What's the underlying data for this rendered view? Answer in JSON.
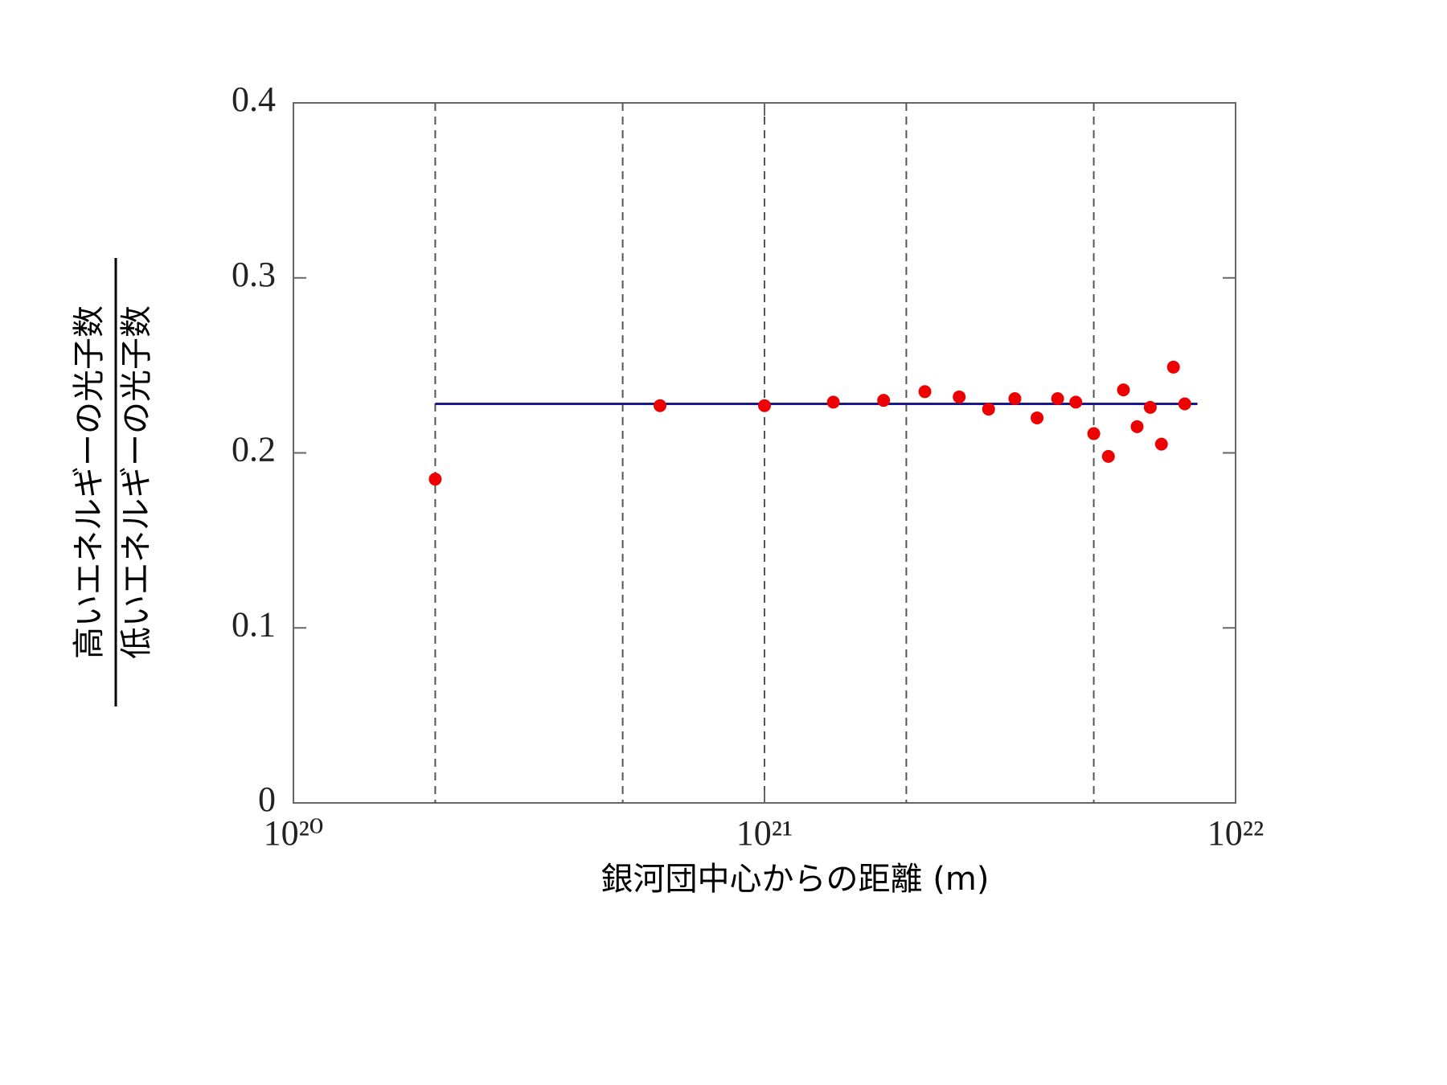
{
  "chart_data": {
    "type": "scatter",
    "xlabel": "銀河団中心からの距離 (m)",
    "ylabel": {
      "numerator": "高いエネルギーの光子数",
      "denominator": "低いエネルギーの光子数"
    },
    "xscale": "log",
    "xlim": [
      1e+20,
      1e+22
    ],
    "ylim": [
      0,
      0.4
    ],
    "xticks": [
      {
        "value": 1e+20,
        "label": "10²⁰"
      },
      {
        "value": 1e+21,
        "label": "10²¹"
      },
      {
        "value": 1e+22,
        "label": "10²²"
      }
    ],
    "yticks": [
      0,
      0.1,
      0.2,
      0.3,
      0.4
    ],
    "xgrid": [
      2e+20,
      5e+20,
      1e+21,
      2e+21,
      5e+21
    ],
    "color": "#ee0000",
    "x": [
      2e+20,
      6e+20,
      1e+21,
      1.4e+21,
      1.79e+21,
      2.19e+21,
      2.59e+21,
      2.99e+21,
      3.4e+21,
      3.79e+21,
      4.19e+21,
      4.58e+21,
      5e+21,
      5.37e+21,
      5.78e+21,
      6.18e+21,
      6.59e+21,
      6.96e+21,
      7.38e+21,
      7.8e+21
    ],
    "values": [
      0.185,
      0.227,
      0.227,
      0.229,
      0.23,
      0.235,
      0.232,
      0.225,
      0.231,
      0.22,
      0.231,
      0.229,
      0.211,
      0.198,
      0.236,
      0.215,
      0.226,
      0.205,
      0.249,
      0.228
    ],
    "fit_line": {
      "x": [
        2e+20,
        8.3e+21
      ],
      "values": [
        0.228,
        0.228
      ],
      "color": "#1a1a8c"
    }
  }
}
